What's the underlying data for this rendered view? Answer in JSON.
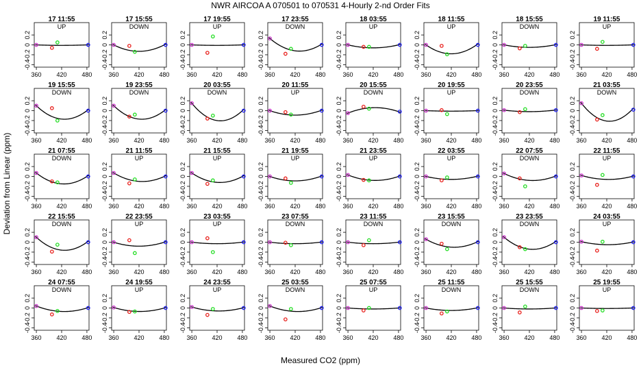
{
  "chart_data": {
    "type": "scatter",
    "title": "NWR   AIRCOA A    070501 to 070531   4-Hourly 2-nd Order Fits",
    "xlabel": "Measured CO2 (ppm)",
    "ylabel": "Deviation from Linear (ppm)",
    "xlim": [
      355,
      485
    ],
    "ylim": [
      -0.45,
      0.45
    ],
    "xticks": [
      360,
      420,
      480
    ],
    "yticks": [
      0.2,
      0.0,
      -0.2,
      -0.4
    ],
    "ytick_labels": [
      "0.2",
      "0",
      "-0.2",
      "-0.4"
    ],
    "xtick_labels": [
      "360",
      "420",
      "480"
    ],
    "point_x": {
      "purple": 360,
      "red": 397,
      "green": 410,
      "blue": 483
    },
    "point_colors": {
      "purple": "#cc33cc",
      "red": "#e8201c",
      "green": "#22dd22",
      "blue": "#1a1aee",
      "curve": "#000000"
    },
    "panels": [
      {
        "time": "17 11:55",
        "dir": "UP",
        "curve": [
          0,
          -0.01,
          0
        ],
        "red": -0.06,
        "green": 0.05
      },
      {
        "time": "17 15:55",
        "dir": "DOWN",
        "curve": [
          0,
          -0.13,
          0
        ],
        "red": -0.02,
        "green": -0.14
      },
      {
        "time": "17 19:55",
        "dir": "UP",
        "curve": [
          0,
          -0.01,
          0
        ],
        "red": -0.16,
        "green": 0.17
      },
      {
        "time": "17 23:55",
        "dir": "DOWN",
        "curve": [
          0.13,
          -0.12,
          0
        ],
        "red": -0.18,
        "green": -0.08
      },
      {
        "time": "18 03:55",
        "dir": "UP",
        "curve": [
          0,
          -0.06,
          0
        ],
        "red": -0.04,
        "green": -0.04
      },
      {
        "time": "18 11:55",
        "dir": "UP",
        "curve": [
          0,
          -0.18,
          0
        ],
        "red": -0.02,
        "green": -0.19
      },
      {
        "time": "18 15:55",
        "dir": "DOWN",
        "curve": [
          0,
          -0.05,
          0
        ],
        "red": -0.07,
        "green": -0.02
      },
      {
        "time": "19 11:55",
        "dir": "UP",
        "curve": [
          0,
          -0.01,
          0
        ],
        "red": -0.08,
        "green": 0.06
      },
      {
        "time": "19 15:55",
        "dir": "DOWN",
        "curve": [
          0.1,
          -0.17,
          0
        ],
        "red": 0.05,
        "green": -0.2
      },
      {
        "time": "19 23:55",
        "dir": "DOWN",
        "curve": [
          0.1,
          -0.17,
          0
        ],
        "red": -0.12,
        "green": -0.08
      },
      {
        "time": "20 03:55",
        "dir": "DOWN",
        "curve": [
          0.15,
          -0.2,
          0
        ],
        "red": -0.16,
        "green": -0.1
      },
      {
        "time": "20 11:55",
        "dir": "UP",
        "curve": [
          0,
          -0.09,
          0
        ],
        "red": -0.03,
        "green": -0.08
      },
      {
        "time": "20 15:55",
        "dir": "DOWN",
        "curve": [
          -0.05,
          0.06,
          -0.02
        ],
        "red": 0.08,
        "green": 0.04
      },
      {
        "time": "20 19:55",
        "dir": "UP",
        "curve": [
          0,
          -0.01,
          0
        ],
        "red": 0.01,
        "green": -0.07
      },
      {
        "time": "20 23:55",
        "dir": "DOWN",
        "curve": [
          0.01,
          -0.02,
          0.01
        ],
        "red": -0.03,
        "green": 0.03
      },
      {
        "time": "21 03:55",
        "dir": "DOWN",
        "curve": [
          0.15,
          -0.21,
          0.02
        ],
        "red": -0.18,
        "green": -0.09
      },
      {
        "time": "21 07:55",
        "dir": "DOWN",
        "curve": [
          0.07,
          -0.15,
          0
        ],
        "red": -0.1,
        "green": -0.12
      },
      {
        "time": "21 11:55",
        "dir": "UP",
        "curve": [
          0.07,
          -0.1,
          0
        ],
        "red": -0.14,
        "green": -0.06
      },
      {
        "time": "21 15:55",
        "dir": "UP",
        "curve": [
          0.07,
          -0.12,
          0
        ],
        "red": -0.15,
        "green": -0.08
      },
      {
        "time": "21 19:55",
        "dir": "UP",
        "curve": [
          0,
          -0.09,
          0
        ],
        "red": -0.04,
        "green": -0.13
      },
      {
        "time": "21 23:55",
        "dir": "UP",
        "curve": [
          0.03,
          -0.08,
          0
        ],
        "red": -0.07,
        "green": -0.08
      },
      {
        "time": "22 03:55",
        "dir": "UP",
        "curve": [
          0,
          -0.06,
          0
        ],
        "red": -0.08,
        "green": -0.02
      },
      {
        "time": "22 07:55",
        "dir": "DOWN",
        "curve": [
          0.06,
          -0.08,
          0
        ],
        "red": -0.04,
        "green": -0.2
      },
      {
        "time": "22 11:55",
        "dir": "UP",
        "curve": [
          0.02,
          -0.06,
          0
        ],
        "red": -0.17,
        "green": 0.03
      },
      {
        "time": "22 15:55",
        "dir": "DOWN",
        "curve": [
          0.1,
          -0.16,
          0
        ],
        "red": -0.19,
        "green": -0.05
      },
      {
        "time": "22 23:55",
        "dir": "UP",
        "curve": [
          0,
          -0.08,
          0
        ],
        "red": 0.04,
        "green": -0.22
      },
      {
        "time": "23 03:55",
        "dir": "UP",
        "curve": [
          0,
          -0.03,
          0
        ],
        "red": 0.08,
        "green": -0.2
      },
      {
        "time": "23 07:55",
        "dir": "DOWN",
        "curve": [
          0,
          -0.03,
          0
        ],
        "red": -0.01,
        "green": -0.06
      },
      {
        "time": "23 11:55",
        "dir": "DOWN",
        "curve": [
          0,
          -0.03,
          0
        ],
        "red": -0.06,
        "green": 0.04
      },
      {
        "time": "23 15:55",
        "dir": "DOWN",
        "curve": [
          0.06,
          -0.1,
          0
        ],
        "red": -0.03,
        "green": -0.14
      },
      {
        "time": "23 23:55",
        "dir": "DOWN",
        "curve": [
          0.1,
          -0.14,
          0
        ],
        "red": -0.1,
        "green": -0.14
      },
      {
        "time": "24 03:55",
        "dir": "UP",
        "curve": [
          0.01,
          -0.05,
          0
        ],
        "red": -0.17,
        "green": 0.01
      },
      {
        "time": "24 07:55",
        "dir": "DOWN",
        "curve": [
          0.04,
          -0.07,
          0
        ],
        "red": -0.13,
        "green": -0.06
      },
      {
        "time": "24 19:55",
        "dir": "UP",
        "curve": [
          0.01,
          -0.07,
          0
        ],
        "red": -0.08,
        "green": -0.07
      },
      {
        "time": "24 23:55",
        "dir": "UP",
        "curve": [
          0.02,
          -0.06,
          0
        ],
        "red": -0.14,
        "green": -0.02
      },
      {
        "time": "25 03:55",
        "dir": "DOWN",
        "curve": [
          0.04,
          -0.07,
          0
        ],
        "red": -0.23,
        "green": -0.02
      },
      {
        "time": "25 07:55",
        "dir": "UP",
        "curve": [
          0,
          -0.02,
          0
        ],
        "red": -0.05,
        "green": 0.0
      },
      {
        "time": "25 11:55",
        "dir": "DOWN",
        "curve": [
          0,
          -0.05,
          0
        ],
        "red": -0.11,
        "green": -0.07
      },
      {
        "time": "25 15:55",
        "dir": "DOWN",
        "curve": [
          0,
          -0.02,
          0
        ],
        "red": -0.09,
        "green": 0.03
      },
      {
        "time": "25 19:55",
        "dir": "UP",
        "curve": [
          0,
          -0.01,
          0
        ],
        "red": -0.06,
        "green": -0.05
      }
    ]
  }
}
